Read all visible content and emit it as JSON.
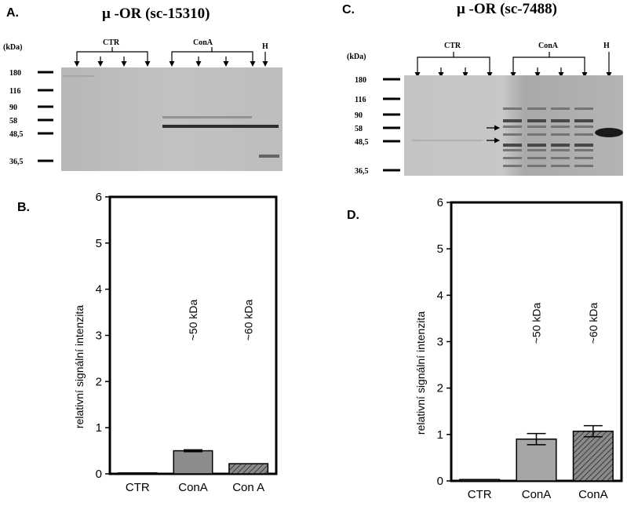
{
  "panels": {
    "A": {
      "letter": "A.",
      "title": "μ -OR (sc-15310)",
      "kda_header": "(kDa)",
      "markers": [
        "180",
        "116",
        "90",
        "58",
        "48,5",
        "36,5"
      ],
      "groups": {
        "ctr": "CTR",
        "cona": "ConA",
        "h": "H"
      }
    },
    "C": {
      "letter": "C.",
      "title": "μ -OR (sc-7488)",
      "kda_header": "(kDa)",
      "markers": [
        "180",
        "116",
        "90",
        "58",
        "48,5",
        "36,5"
      ],
      "groups": {
        "ctr": "CTR",
        "cona": "ConA",
        "h": "H"
      }
    },
    "B": {
      "letter": "B."
    },
    "D": {
      "letter": "D."
    }
  },
  "chart_data": [
    {
      "panel": "B",
      "type": "bar",
      "categories": [
        "CTR",
        "ConA",
        "Con A"
      ],
      "values": [
        0.02,
        0.5,
        0.22
      ],
      "errors": [
        0.0,
        0.02,
        0.0
      ],
      "fills": [
        "solid",
        "solid",
        "hatched"
      ],
      "bar_colors": [
        "#9a9a9a",
        "#8c8c8c",
        "#7a7a7a"
      ],
      "annotations": [
        "",
        "~50 kDa",
        "~60 kDa"
      ],
      "xlabel": "",
      "ylabel": "relativní signální intenzita",
      "ylim": [
        0,
        6
      ],
      "yticks": [
        "0",
        "1",
        "2",
        "3",
        "4",
        "5",
        "6"
      ],
      "grid": false
    },
    {
      "panel": "D",
      "type": "bar",
      "categories": [
        "CTR",
        "ConA",
        "ConA"
      ],
      "values": [
        0.03,
        0.9,
        1.07
      ],
      "errors": [
        0.0,
        0.12,
        0.12
      ],
      "fills": [
        "solid",
        "solid",
        "hatched"
      ],
      "bar_colors": [
        "#9a9a9a",
        "#a6a6a6",
        "#7a7a7a"
      ],
      "annotations": [
        "",
        "~50 kDa",
        "~60 kDa"
      ],
      "xlabel": "",
      "ylabel": "relativní signální intenzita",
      "ylim": [
        0,
        6
      ],
      "yticks": [
        "0",
        "1",
        "2",
        "3",
        "4",
        "5",
        "6"
      ],
      "grid": false
    }
  ]
}
